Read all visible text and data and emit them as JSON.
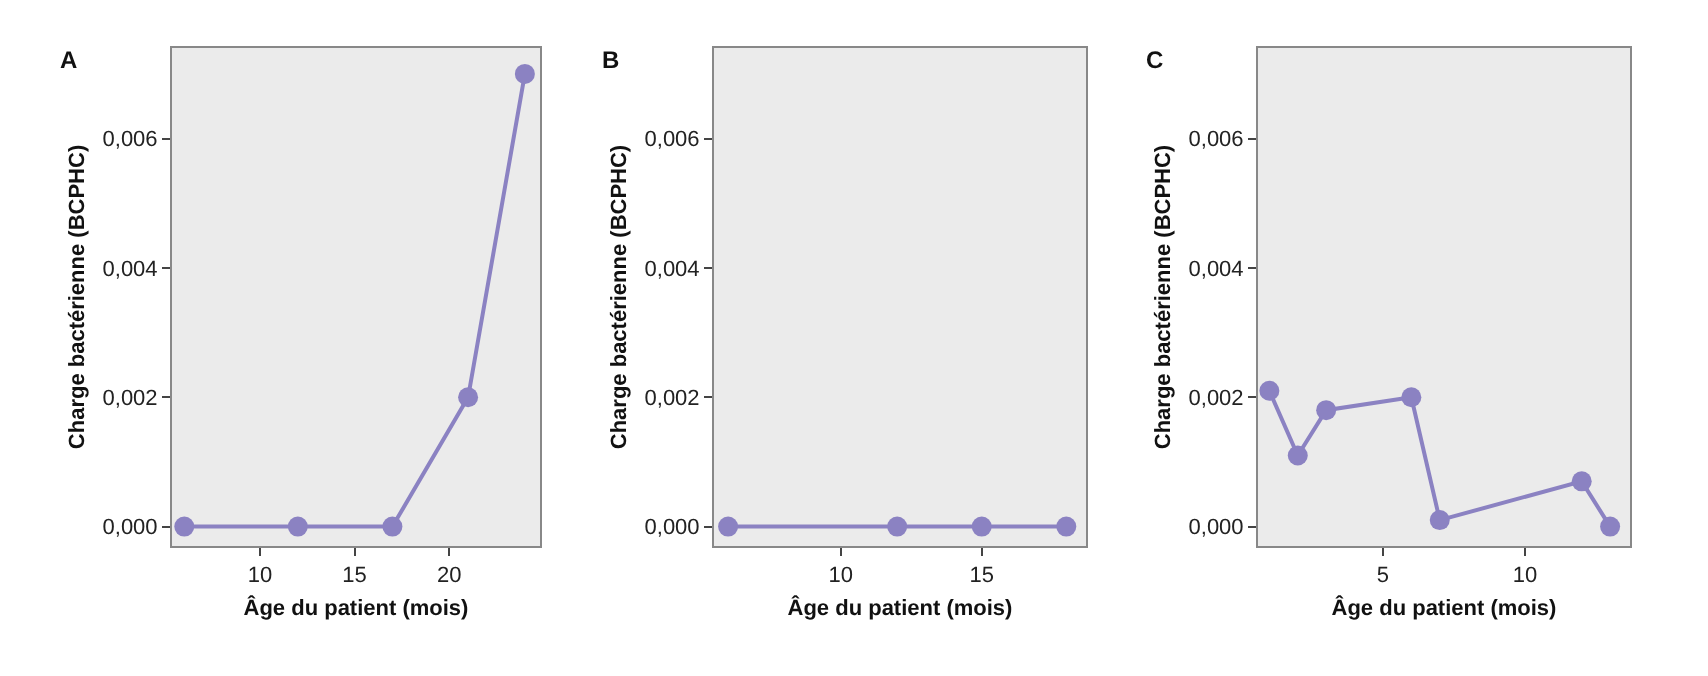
{
  "chart_data": [
    {
      "type": "line",
      "title": "A",
      "xlabel": "Âge du patient (mois)",
      "ylabel": "Charge bactérienne (BCPHC)",
      "x": [
        6,
        12,
        17,
        21,
        24
      ],
      "series": [
        {
          "color": "#8b82c2",
          "values": [
            0,
            0,
            0,
            0.002,
            0.007
          ]
        }
      ],
      "xlim": [
        5.35,
        24.8
      ],
      "xticks": [
        10,
        15,
        20
      ],
      "ylim": [
        -0.0003,
        0.0074
      ],
      "yticks": [
        {
          "value": 0,
          "label": "0,000"
        },
        {
          "value": 0.002,
          "label": "0,002"
        },
        {
          "value": 0.004,
          "label": "0,004"
        },
        {
          "value": 0.006,
          "label": "0,006"
        }
      ],
      "marker": "circle",
      "line_style": "solid",
      "grid": false
    },
    {
      "type": "line",
      "title": "B",
      "xlabel": "Âge du patient (mois)",
      "ylabel": "Charge bactérienne (BCPHC)",
      "x": [
        6,
        12,
        15,
        18
      ],
      "series": [
        {
          "color": "#8b82c2",
          "values": [
            0,
            0,
            0,
            0
          ]
        }
      ],
      "xlim": [
        5.5,
        18.7
      ],
      "xticks": [
        10,
        15
      ],
      "ylim": [
        -0.0003,
        0.0074
      ],
      "yticks": [
        {
          "value": 0,
          "label": "0,000"
        },
        {
          "value": 0.002,
          "label": "0,002"
        },
        {
          "value": 0.004,
          "label": "0,004"
        },
        {
          "value": 0.006,
          "label": "0,006"
        }
      ],
      "marker": "circle",
      "line_style": "solid",
      "grid": false
    },
    {
      "type": "line",
      "title": "C",
      "xlabel": "Âge du patient (mois)",
      "ylabel": "Charge bactérienne (BCPHC)",
      "x": [
        1,
        2,
        3,
        6,
        7,
        12,
        13
      ],
      "series": [
        {
          "color": "#8b82c2",
          "values": [
            0.0021,
            0.0011,
            0.0018,
            0.002,
            0.0001,
            0.0007,
            0
          ]
        }
      ],
      "xlim": [
        0.6,
        13.7
      ],
      "xticks": [
        5,
        10
      ],
      "ylim": [
        -0.0003,
        0.0074
      ],
      "yticks": [
        {
          "value": 0,
          "label": "0,000"
        },
        {
          "value": 0.002,
          "label": "0,002"
        },
        {
          "value": 0.004,
          "label": "0,004"
        },
        {
          "value": 0.006,
          "label": "0,006"
        }
      ],
      "marker": "circle",
      "line_style": "solid",
      "grid": false
    }
  ]
}
